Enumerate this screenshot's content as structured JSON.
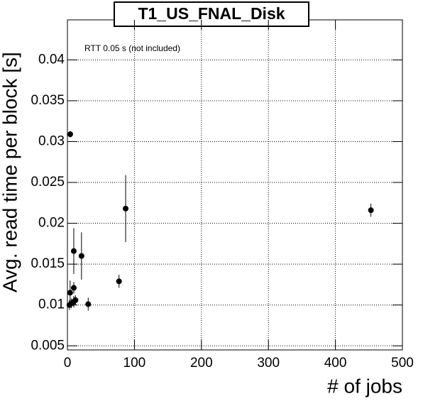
{
  "chart_data": {
    "type": "scatter",
    "title": "T1_US_FNAL_Disk",
    "annotation": "RTT 0.05 s (not included)",
    "xlabel": "# of jobs",
    "ylabel": "Avg. read time per block [s]",
    "x": [
      4.2,
      86.9,
      453,
      9.5,
      21,
      77,
      31,
      4,
      9.5,
      9.5,
      3,
      6,
      12
    ],
    "values": [
      0.0309,
      0.0218,
      0.0216,
      0.0166,
      0.016,
      0.0129,
      0.0101,
      0.0115,
      0.0121,
      0.0104,
      0.01,
      0.0102,
      0.0106
    ],
    "errors": [
      0.0004,
      0.0041,
      0.0008,
      0.0028,
      0.0029,
      0.0008,
      0.0008,
      0.0015,
      0.0007,
      0.0007,
      0.0006,
      0.0006,
      0.0006
    ],
    "color": "#000000",
    "xlim": [
      0,
      500
    ],
    "ylim": [
      0.0045,
      0.0449
    ],
    "xticks": [
      0,
      100,
      200,
      300,
      400,
      500
    ],
    "yticks": [
      0.005,
      0.01,
      0.015,
      0.02,
      0.025,
      0.03,
      0.035,
      0.04
    ],
    "grid": true
  }
}
